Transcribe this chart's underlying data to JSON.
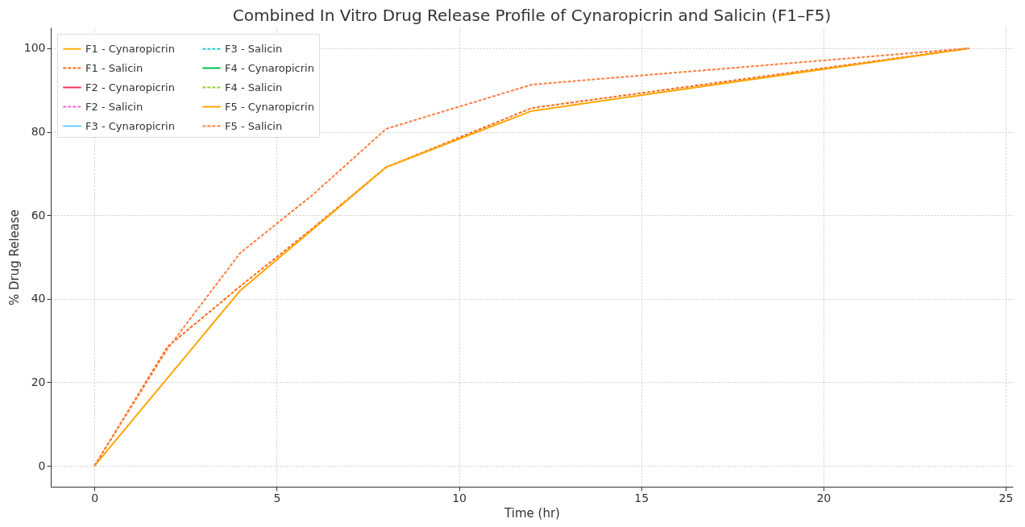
{
  "chart_data": {
    "type": "line",
    "title": "Combined In Vitro Drug Release Profile of Cynaropicrin and Salicin (F1–F5)",
    "xlabel": "Time (hr)",
    "ylabel": "% Drug Release",
    "x": [
      0,
      2,
      4,
      6,
      8,
      12,
      24
    ],
    "series": [
      {
        "name": "F1 - Cynaropicrin",
        "color": "#ffb000",
        "line_style": "solid",
        "values": [
          null,
          null,
          null,
          null,
          null,
          null,
          null
        ]
      },
      {
        "name": "F1 - Salicin",
        "color": "#ff6a1a",
        "line_style": "dashed",
        "values": [
          0,
          28.5,
          43,
          57,
          71.5,
          85.7,
          100
        ]
      },
      {
        "name": "F2 - Cynaropicrin",
        "color": "#f0305a",
        "line_style": "solid",
        "values": [
          null,
          null,
          null,
          null,
          null,
          null,
          null
        ]
      },
      {
        "name": "F2 - Salicin",
        "color": "#ff66cc",
        "line_style": "dashed",
        "values": [
          null,
          null,
          null,
          null,
          null,
          null,
          null
        ]
      },
      {
        "name": "F3 - Cynaropicrin",
        "color": "#66ccff",
        "line_style": "solid",
        "values": [
          null,
          null,
          null,
          null,
          null,
          null,
          null
        ]
      },
      {
        "name": "F3 - Salicin",
        "color": "#22cccc",
        "line_style": "dashed",
        "values": [
          null,
          null,
          null,
          null,
          null,
          null,
          null
        ]
      },
      {
        "name": "F4 - Cynaropicrin",
        "color": "#00c050",
        "line_style": "solid",
        "values": [
          null,
          null,
          null,
          null,
          null,
          null,
          null
        ]
      },
      {
        "name": "F4 - Salicin",
        "color": "#99cc33",
        "line_style": "dashed",
        "values": [
          null,
          null,
          null,
          null,
          null,
          null,
          null
        ]
      },
      {
        "name": "F5 - Cynaropicrin",
        "color": "#ffa500",
        "line_style": "solid",
        "values": [
          0,
          21,
          42,
          56.7,
          71.5,
          85,
          100
        ]
      },
      {
        "name": "F5 - Salicin",
        "color": "#ff7f40",
        "line_style": "dashed",
        "values": [
          0,
          28,
          51,
          65,
          80.7,
          91.3,
          100
        ]
      }
    ],
    "xlim": [
      -1.2,
      25.2
    ],
    "xticks": [
      0,
      5,
      10,
      15,
      20,
      25
    ],
    "ylim": [
      -5,
      105
    ],
    "yticks": [
      0,
      20,
      40,
      60,
      80,
      100
    ],
    "grid": true,
    "legend": "top left",
    "marker": "none"
  }
}
